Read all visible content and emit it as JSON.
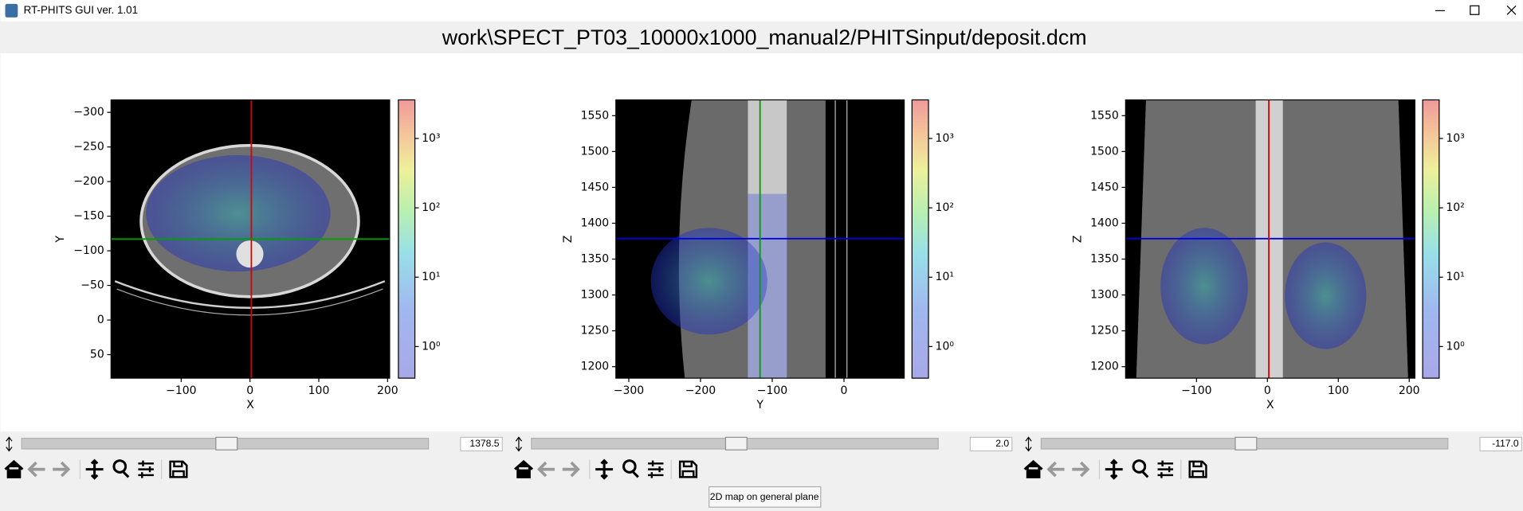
{
  "window": {
    "title": "RT-PHITS GUI ver. 1.01"
  },
  "header": {
    "path": "work\\SPECT_PT03_10000x1000_manual2/PHITSinput/deposit.dcm"
  },
  "crosshair_colors": {
    "X": "#e00000",
    "Y": "#00a000",
    "Z": "#0000e0"
  },
  "panels": [
    {
      "xlabel": "X",
      "ylabel": "Y",
      "xlim": [
        -202,
        203
      ],
      "ylim": [
        -318,
        84
      ],
      "y_inverted": true,
      "xticks": [
        {
          "value": -100,
          "label": "−100"
        },
        0,
        100,
        200
      ],
      "yticks": [
        {
          "value": -300,
          "label": "−300"
        },
        {
          "value": -250,
          "label": "−250"
        },
        {
          "value": -200,
          "label": "−200"
        },
        {
          "value": -150,
          "label": "−150"
        },
        {
          "value": -100,
          "label": "−100"
        },
        {
          "value": -50,
          "label": "−50"
        },
        0,
        50
      ],
      "colorbar": {
        "lim": [
          0.35,
          3600
        ],
        "log": true,
        "ticks": [
          {
            "value": 1,
            "label": "10⁰"
          },
          {
            "value": 10,
            "label": "10¹"
          },
          {
            "value": 100,
            "label": "10²"
          },
          {
            "value": 1000,
            "label": "10³"
          }
        ]
      },
      "slider": 1378.5
    },
    {
      "xlabel": "Y",
      "ylabel": "Z",
      "xlim": [
        -318,
        84
      ],
      "ylim": [
        1184,
        1572
      ],
      "y_inverted": false,
      "xticks": [
        {
          "value": -300,
          "label": "−300"
        },
        {
          "value": -200,
          "label": "−200"
        },
        {
          "value": -100,
          "label": "−100"
        },
        0
      ],
      "yticks": [
        1200,
        1250,
        1300,
        1350,
        1400,
        1450,
        1500,
        1550
      ],
      "colorbar": {
        "lim": [
          0.35,
          3600
        ],
        "log": true,
        "ticks": [
          {
            "value": 1,
            "label": "10⁰"
          },
          {
            "value": 10,
            "label": "10¹"
          },
          {
            "value": 100,
            "label": "10²"
          },
          {
            "value": 1000,
            "label": "10³"
          }
        ]
      },
      "slider": {
        "value": 2,
        "label": "2.0"
      }
    },
    {
      "xlabel": "X",
      "ylabel": "Z",
      "xlim": [
        -200,
        208
      ],
      "ylim": [
        1184,
        1572
      ],
      "y_inverted": false,
      "xticks": [
        {
          "value": -100,
          "label": "−100"
        },
        0,
        100,
        200
      ],
      "yticks": [
        1200,
        1250,
        1300,
        1350,
        1400,
        1450,
        1500,
        1550
      ],
      "colorbar": {
        "lim": [
          0.35,
          3600
        ],
        "log": true,
        "ticks": [
          {
            "value": 1,
            "label": "10⁰"
          },
          {
            "value": 10,
            "label": "10¹"
          },
          {
            "value": 100,
            "label": "10²"
          },
          {
            "value": 1000,
            "label": "10³"
          }
        ]
      },
      "slider": {
        "value": -117,
        "label": "-117.0"
      }
    }
  ],
  "button": "2D map on general plane"
}
